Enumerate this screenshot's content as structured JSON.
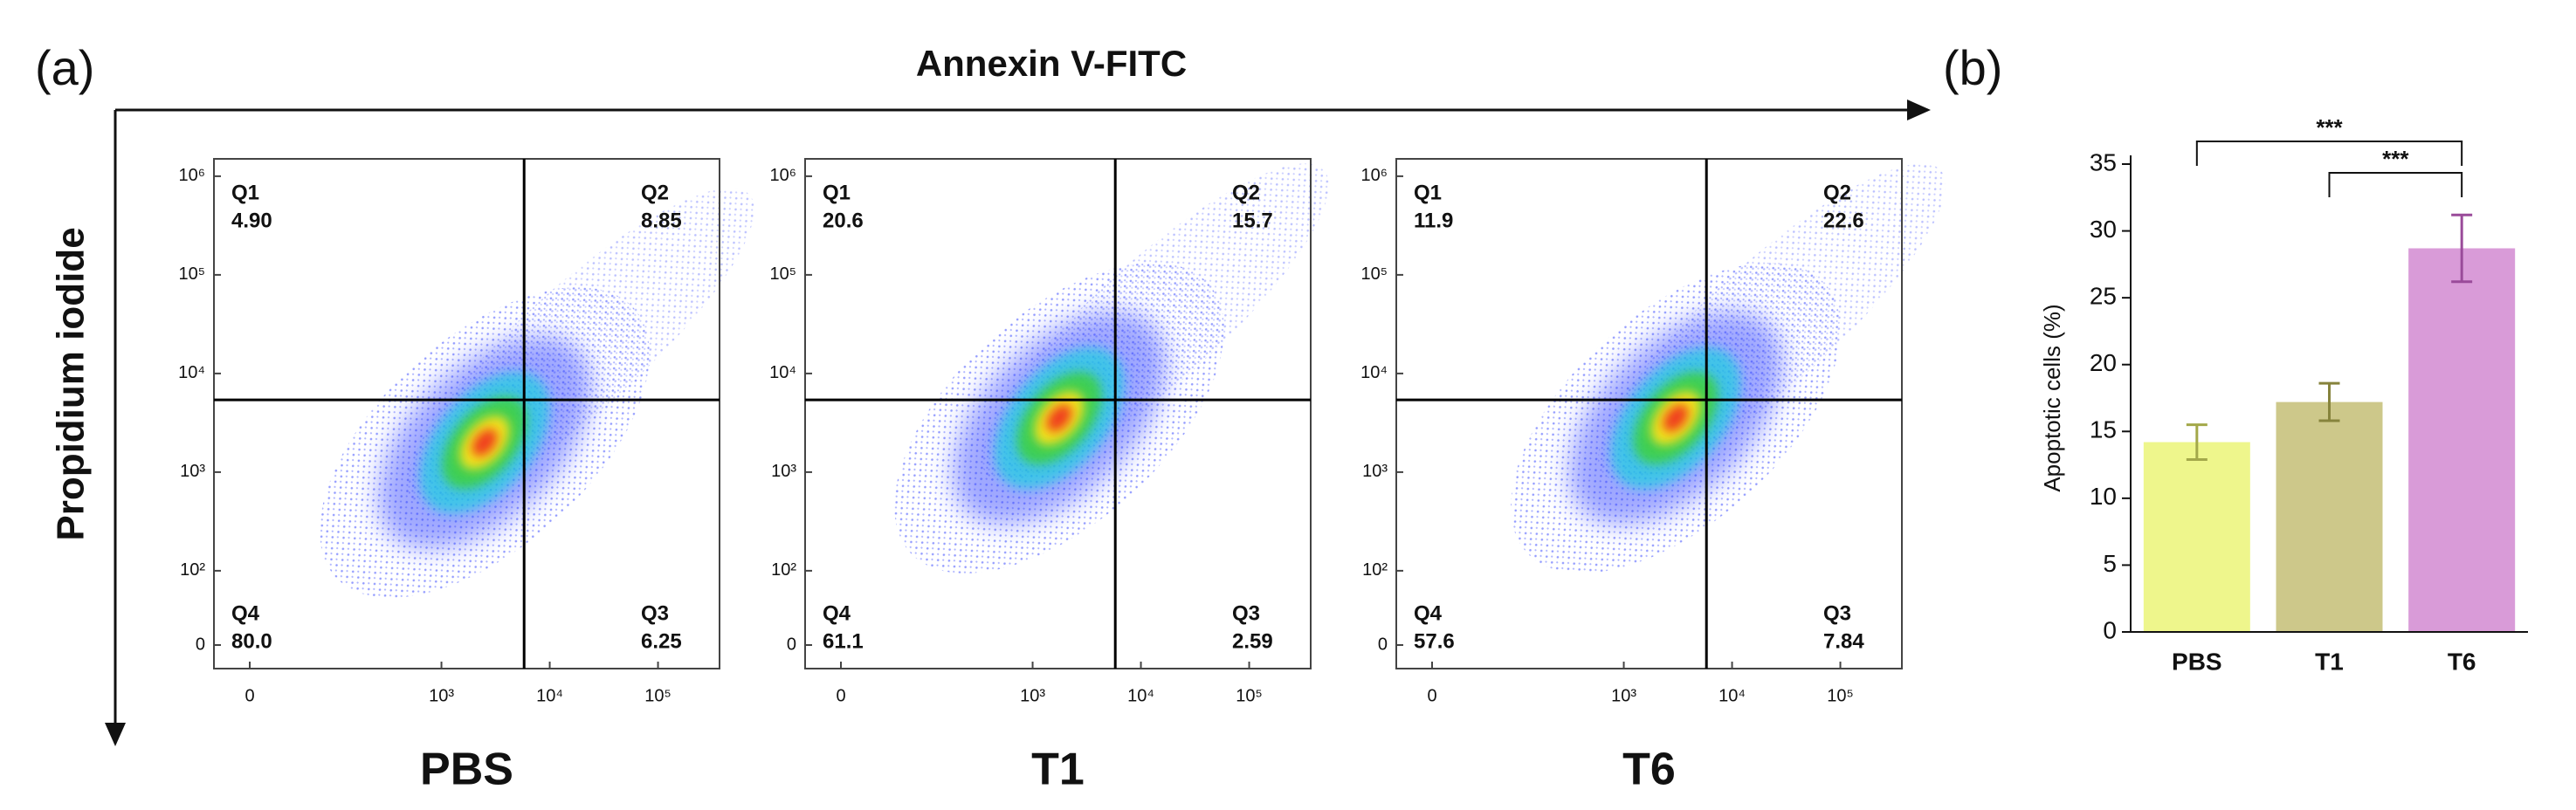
{
  "panel_labels": [
    "(a)",
    "(b)"
  ],
  "x_axis_label": "Annexin V-FITC",
  "y_axis_label": "Propidium iodide",
  "chart_data": [
    {
      "type": "flow",
      "title": "PBS",
      "quadrants": [
        "Q1",
        "Q2",
        "Q3",
        "Q4"
      ],
      "values": [
        4.9,
        8.85,
        6.25,
        80
      ],
      "value_labels": [
        "4.90",
        "8.85",
        "6.25",
        "80.0"
      ],
      "gate_x": 5800,
      "gate_y": 5400,
      "xscale": "biexponential",
      "yscale": "biexponential",
      "xlim": [
        0,
        370000
      ],
      "ylim": [
        0,
        1500000
      ],
      "xticks": [
        0,
        {
          "value": 1000,
          "label": "10³"
        },
        {
          "value": 10000,
          "label": "10⁴"
        },
        {
          "value": 100000,
          "label": "10⁵"
        }
      ],
      "yticks": [
        0,
        {
          "value": 100,
          "label": "10²"
        },
        {
          "value": 1000,
          "label": "10³"
        },
        {
          "value": 10000,
          "label": "10⁴"
        },
        {
          "value": 100000,
          "label": "10⁵"
        },
        {
          "value": 1000000,
          "label": "10⁶"
        }
      ]
    },
    {
      "type": "flow",
      "title": "T1",
      "quadrants": [
        "Q1",
        "Q2",
        "Q3",
        "Q4"
      ],
      "values": [
        20.6,
        15.7,
        2.59,
        61.1
      ],
      "value_labels": [
        "20.6",
        "15.7",
        "2.59",
        "61.1"
      ],
      "gate_x": 5800,
      "gate_y": 5400,
      "xscale": "biexponential",
      "yscale": "biexponential",
      "xlim": [
        0,
        370000
      ],
      "ylim": [
        0,
        1500000
      ],
      "xticks": [
        0,
        {
          "value": 1000,
          "label": "10³"
        },
        {
          "value": 10000,
          "label": "10⁴"
        },
        {
          "value": 100000,
          "label": "10⁵"
        }
      ],
      "yticks": [
        0,
        {
          "value": 100,
          "label": "10²"
        },
        {
          "value": 1000,
          "label": "10³"
        },
        {
          "value": 10000,
          "label": "10⁴"
        },
        {
          "value": 100000,
          "label": "10⁵"
        },
        {
          "value": 1000000,
          "label": "10⁶"
        }
      ]
    },
    {
      "type": "flow",
      "title": "T6",
      "quadrants": [
        "Q1",
        "Q2",
        "Q3",
        "Q4"
      ],
      "values": [
        11.9,
        22.6,
        7.84,
        57.6
      ],
      "value_labels": [
        "11.9",
        "22.6",
        "7.84",
        "57.6"
      ],
      "gate_x": 5800,
      "gate_y": 5400,
      "xscale": "biexponential",
      "yscale": "biexponential",
      "xlim": [
        0,
        370000
      ],
      "ylim": [
        0,
        1500000
      ],
      "xticks": [
        0,
        {
          "value": 1000,
          "label": "10³"
        },
        {
          "value": 10000,
          "label": "10⁴"
        },
        {
          "value": 100000,
          "label": "10⁵"
        }
      ],
      "yticks": [
        0,
        {
          "value": 100,
          "label": "10²"
        },
        {
          "value": 1000,
          "label": "10³"
        },
        {
          "value": 10000,
          "label": "10⁴"
        },
        {
          "value": 100000,
          "label": "10⁵"
        },
        {
          "value": 1000000,
          "label": "10⁶"
        }
      ]
    },
    {
      "type": "bar",
      "categories": [
        "PBS",
        "T1",
        "T6"
      ],
      "values": [
        14.2,
        17.2,
        28.7
      ],
      "errors": [
        1.3,
        1.4,
        2.5
      ],
      "colors": [
        "#eef68c",
        "#cdc88a",
        "#d99bd8"
      ],
      "error_colors": [
        "#a3a84a",
        "#86833c",
        "#9a4b9a"
      ],
      "ylabel": "Apoptotic cells (%)",
      "ylim": [
        0,
        35
      ],
      "yticks": [
        0,
        5,
        10,
        15,
        20,
        25,
        30,
        35
      ],
      "significance": [
        {
          "label": "***",
          "pair": [
            "PBS",
            "T6"
          ]
        },
        {
          "label": "***",
          "pair": [
            "T1",
            "T6"
          ]
        }
      ]
    }
  ]
}
